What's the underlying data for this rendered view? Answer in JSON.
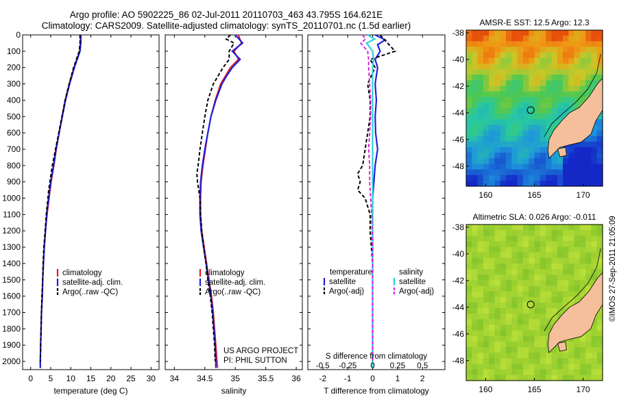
{
  "header": {
    "title_line1": "Argo profile: AO 5902225_86 02-Jul-2011 20110703_463 43.795S 164.621E",
    "title_line2": "Climatology: CARS2009. Satellite-adjusted climatology: synTS_20110701.nc (1.5d earlier)"
  },
  "colors": {
    "climatology": "#e41a1c",
    "satellite": "#1f1fdd",
    "argo": "#000000",
    "sal_satellite": "#2ad4d4",
    "sal_argo": "#dd22dd",
    "land": "#f4bf9a"
  },
  "depth_axis": {
    "ylim": [
      0,
      2050
    ],
    "ticks": [
      0,
      100,
      200,
      300,
      400,
      500,
      600,
      700,
      800,
      900,
      1000,
      1100,
      1200,
      1300,
      1400,
      1500,
      1600,
      1700,
      1800,
      1900,
      2000
    ]
  },
  "chart_data": [
    {
      "type": "line",
      "name": "temperature-profile",
      "xlabel": "temperature (deg C)",
      "xlim": [
        -2,
        32
      ],
      "xticks": [
        0,
        5,
        10,
        15,
        20,
        25,
        30
      ],
      "legend": [
        "climatology",
        "satellite-adj. clim.",
        "Argo(..raw -QC)"
      ],
      "series": [
        {
          "name": "climatology",
          "depth": [
            0,
            50,
            100,
            150,
            200,
            300,
            400,
            500,
            600,
            700,
            800,
            900,
            1000,
            1100,
            1200,
            1300,
            1400,
            1500,
            1600,
            1700,
            1800,
            1900,
            2000,
            2040
          ],
          "values": [
            12.4,
            12.4,
            12.2,
            11.5,
            10.8,
            9.6,
            8.6,
            7.8,
            7.1,
            6.4,
            5.8,
            5.1,
            4.6,
            4.1,
            3.7,
            3.4,
            3.2,
            3.0,
            2.9,
            2.7,
            2.6,
            2.5,
            2.4,
            2.4
          ]
        },
        {
          "name": "satellite-adj. clim.",
          "depth": [
            0,
            50,
            100,
            150,
            200,
            300,
            400,
            500,
            600,
            700,
            800,
            900,
            1000,
            1100,
            1200,
            1300,
            1400,
            1500,
            1600,
            1700,
            1800,
            1900,
            2000,
            2040
          ],
          "values": [
            12.5,
            12.5,
            12.3,
            11.6,
            10.9,
            9.7,
            8.7,
            7.9,
            7.1,
            6.3,
            5.7,
            5.0,
            4.5,
            4.0,
            3.7,
            3.4,
            3.2,
            3.0,
            2.9,
            2.7,
            2.6,
            2.5,
            2.4,
            2.4
          ]
        },
        {
          "name": "Argo(..raw -QC)",
          "depth": [
            0,
            50,
            100,
            150,
            200,
            300,
            400,
            500,
            600,
            700,
            800,
            850,
            900,
            950,
            1000,
            1100,
            1200,
            1300,
            1400,
            1500,
            1600,
            1700,
            1800,
            1900,
            2000
          ],
          "values": [
            12.3,
            12.3,
            12.1,
            11.4,
            10.7,
            9.6,
            8.6,
            7.8,
            7.0,
            6.2,
            5.4,
            5.1,
            4.8,
            4.5,
            4.3,
            3.9,
            3.6,
            3.3,
            3.1,
            3.0,
            2.8,
            2.7,
            2.6,
            2.5,
            2.4
          ]
        }
      ]
    },
    {
      "type": "line",
      "name": "salinity-profile",
      "xlabel": "salinity",
      "xlim": [
        33.85,
        36.1
      ],
      "xticks": [
        34,
        34.5,
        35,
        35.5,
        36
      ],
      "xtick_labels": [
        "34",
        "34.5",
        "35",
        "35.5",
        "36"
      ],
      "legend": [
        "climatology",
        "satellite-adj. clim.",
        "Argo(..raw -QC)"
      ],
      "annotation": [
        "US ARGO PROJECT",
        "PI: PHIL SUTTON"
      ],
      "series": [
        {
          "name": "climatology",
          "depth": [
            0,
            50,
            100,
            150,
            200,
            250,
            300,
            400,
            500,
            600,
            700,
            800,
            900,
            1000,
            1100,
            1200,
            1300,
            1400,
            1500,
            1600,
            1700,
            1800,
            1900,
            2000,
            2040
          ],
          "values": [
            35.05,
            35.1,
            34.98,
            35.05,
            34.92,
            34.84,
            34.76,
            34.67,
            34.6,
            34.55,
            34.51,
            34.47,
            34.44,
            34.43,
            34.43,
            34.45,
            34.49,
            34.53,
            34.57,
            34.61,
            34.64,
            34.66,
            34.68,
            34.7,
            34.71
          ]
        },
        {
          "name": "satellite-adj. clim.",
          "depth": [
            0,
            50,
            100,
            150,
            200,
            250,
            300,
            400,
            500,
            600,
            700,
            800,
            900,
            1000,
            1100,
            1200,
            1300,
            1400,
            1500,
            1600,
            1700,
            1800,
            1900,
            2000,
            2040
          ],
          "values": [
            35.0,
            35.12,
            34.95,
            35.08,
            34.95,
            34.86,
            34.78,
            34.68,
            34.6,
            34.55,
            34.5,
            34.46,
            34.43,
            34.42,
            34.42,
            34.44,
            34.48,
            34.52,
            34.56,
            34.6,
            34.63,
            34.65,
            34.67,
            34.68,
            34.68
          ]
        },
        {
          "name": "Argo(..raw -QC)",
          "depth": [
            0,
            25,
            50,
            100,
            150,
            200,
            250,
            300,
            400,
            500,
            600,
            700,
            800,
            850,
            900,
            950,
            1000,
            1100,
            1200,
            1300,
            1400,
            1500,
            1600,
            1700,
            1800,
            1900,
            2000
          ],
          "values": [
            34.92,
            34.85,
            34.98,
            34.9,
            34.9,
            34.8,
            34.72,
            34.64,
            34.55,
            34.5,
            34.46,
            34.42,
            34.39,
            34.37,
            34.38,
            34.4,
            34.42,
            34.43,
            34.45,
            34.48,
            34.52,
            34.55,
            34.59,
            34.62,
            34.64,
            34.66,
            34.67
          ]
        }
      ]
    },
    {
      "type": "line",
      "name": "difference-profile",
      "xlabel": "T difference from climatology",
      "xlim": [
        -2.6,
        2.9
      ],
      "xticks": [
        -2,
        -1,
        0,
        1,
        2
      ],
      "top_axis_label": "S difference from climatology",
      "top_ticks": [
        -0.5,
        -0.25,
        0,
        0.25,
        0.5
      ],
      "top_tick_labels": [
        "-0.5",
        "-0.25",
        "0",
        "0.25",
        "0.5"
      ],
      "legend_headers": [
        "temperature",
        "salinity"
      ],
      "legend": [
        "satellite",
        "Argo(-adj)",
        "satellite",
        "Argo(-adj)"
      ],
      "series": [
        {
          "name": "T satellite",
          "depth": [
            0,
            30,
            60,
            100,
            150,
            200,
            300,
            400,
            500,
            600,
            700,
            800,
            900,
            1000,
            1100,
            1200,
            1400,
            1600,
            1800,
            2000,
            2040
          ],
          "values": [
            0.1,
            0.5,
            0.2,
            0.3,
            0.1,
            0.2,
            0.1,
            0.15,
            0.1,
            0.12,
            0.2,
            0.1,
            0.05,
            0.0,
            0.0,
            0.0,
            0.0,
            0.0,
            0.0,
            0.0,
            0.0
          ]
        },
        {
          "name": "T Argo(-adj)",
          "depth": [
            0,
            50,
            100,
            150,
            200,
            300,
            400,
            500,
            600,
            700,
            800,
            850,
            900,
            950,
            1000,
            1100,
            1200,
            1400,
            1600,
            1800,
            2000
          ],
          "values": [
            0.3,
            0.6,
            0.9,
            -0.1,
            0.1,
            -0.2,
            -0.1,
            -0.1,
            -0.2,
            -0.3,
            -0.4,
            -0.6,
            -0.5,
            -0.6,
            -0.3,
            -0.1,
            -0.1,
            0.0,
            0.0,
            0.0,
            0.0
          ]
        },
        {
          "name": "S satellite",
          "depth": [
            0,
            25,
            50,
            100,
            150,
            200,
            300,
            500,
            700,
            900,
            1100,
            1300,
            1500,
            1700,
            1900,
            2040
          ],
          "values": [
            -0.05,
            0.02,
            -0.06,
            0.0,
            0.01,
            0.0,
            0.0,
            0.0,
            0.0,
            0.0,
            0.0,
            0.0,
            0.0,
            0.0,
            0.0,
            0.0
          ]
        },
        {
          "name": "S Argo(-adj)",
          "depth": [
            0,
            25,
            50,
            100,
            150,
            200,
            300,
            400,
            500,
            600,
            700,
            800,
            900,
            1000,
            1100,
            1300,
            1500,
            1700,
            1900,
            2000
          ],
          "values": [
            -0.1,
            -0.07,
            -0.12,
            -0.05,
            -0.04,
            -0.04,
            -0.03,
            -0.02,
            -0.02,
            -0.03,
            -0.04,
            -0.03,
            -0.03,
            -0.02,
            -0.01,
            0.0,
            0.0,
            0.0,
            0.0,
            0.0
          ]
        }
      ]
    },
    {
      "type": "heatmap",
      "name": "sst-map",
      "title": "AMSR-E SST: 12.5 Argo: 12.3",
      "xlim": [
        158,
        172
      ],
      "ylim": [
        -49.5,
        -37.8
      ],
      "xticks": [
        160,
        165,
        170
      ],
      "yticks": [
        -38,
        -40,
        -42,
        -44,
        -46,
        -48
      ],
      "float_position": {
        "lon": 164.621,
        "lat": -43.795
      }
    },
    {
      "type": "heatmap",
      "name": "sla-map",
      "title": "Altimetric SLA: 0.026 Argo: -0.011",
      "xlim": [
        158,
        172
      ],
      "ylim": [
        -49.5,
        -37.8
      ],
      "xticks": [
        160,
        165,
        170
      ],
      "yticks": [
        -38,
        -40,
        -42,
        -44,
        -46,
        -48
      ],
      "float_position": {
        "lon": 164.621,
        "lat": -43.795
      }
    }
  ],
  "footer": {
    "stamp": "©IMOS 27-Sep-2011 21:05:09"
  }
}
